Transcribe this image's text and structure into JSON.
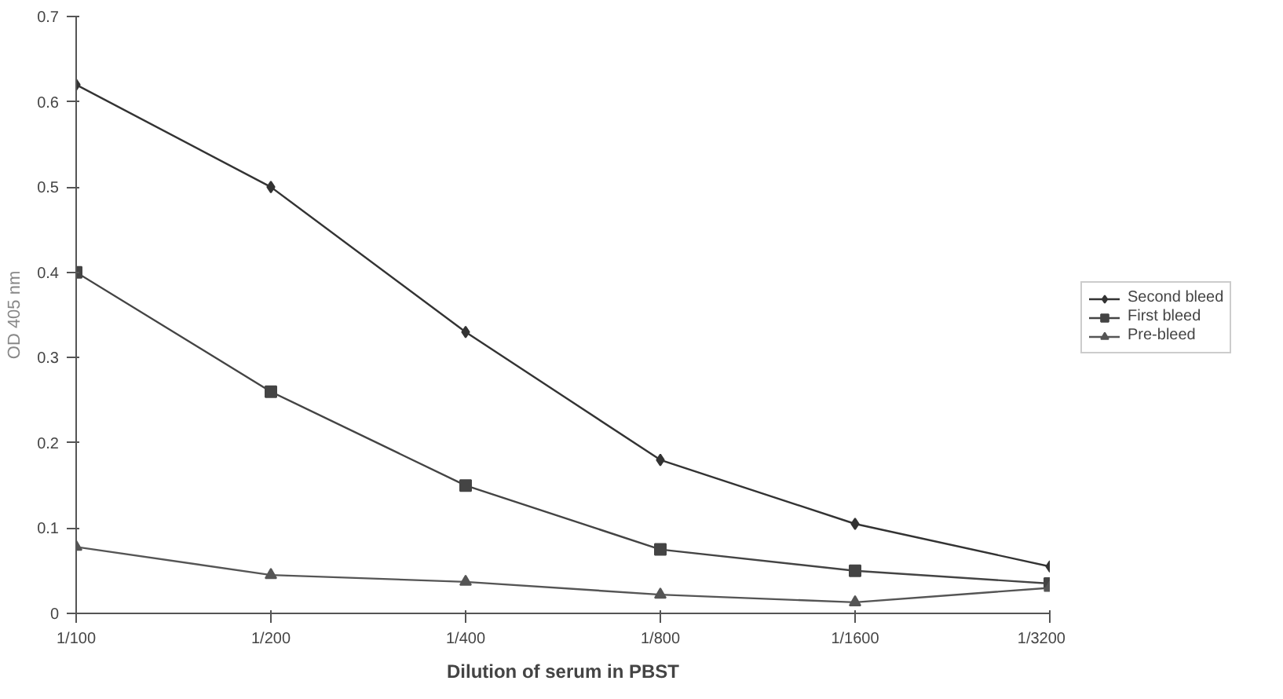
{
  "chart_data": {
    "type": "line",
    "xlabel": "Dilution of serum in PBST",
    "ylabel": "OD 405 nm",
    "categories": [
      "1/100",
      "1/200",
      "1/400",
      "1/800",
      "1/1600",
      "1/3200"
    ],
    "ylim": [
      0,
      0.7
    ],
    "yticks": [
      0,
      0.1,
      0.2,
      0.3,
      0.4,
      0.5,
      0.6,
      0.7
    ],
    "grid": false,
    "legend": "right",
    "line_style": "solid",
    "series": [
      {
        "name": "Second bleed",
        "color": "#333333",
        "marker": "diamond",
        "values": [
          0.62,
          0.5,
          0.33,
          0.18,
          0.105,
          0.055
        ]
      },
      {
        "name": "First bleed",
        "color": "#444444",
        "marker": "square",
        "values": [
          0.4,
          0.26,
          0.15,
          0.075,
          0.05,
          0.035
        ]
      },
      {
        "name": "Pre-bleed",
        "color": "#555555",
        "marker": "triangle",
        "values": [
          0.078,
          0.045,
          0.037,
          0.022,
          0.013,
          0.03
        ]
      }
    ]
  }
}
